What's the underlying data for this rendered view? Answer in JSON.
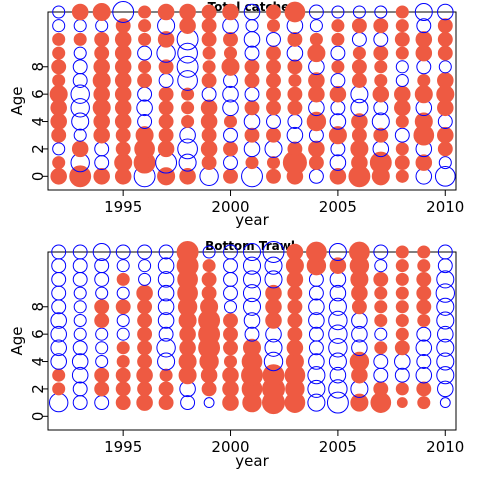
{
  "colors": {
    "positive": "#EE5A42",
    "negative": "#0000FF"
  },
  "chart_data": [
    {
      "type": "bubble",
      "title": "Total catches",
      "xlabel": "year",
      "ylabel": "Age",
      "xlim": [
        1991.5,
        2010.5
      ],
      "ylim": [
        -1,
        12
      ],
      "x_ticks": [
        1995,
        2000,
        2005,
        2010
      ],
      "y_ticks": [
        0,
        2,
        4,
        6,
        8
      ],
      "years": [
        1992,
        1993,
        1994,
        1995,
        1996,
        1997,
        1998,
        1999,
        2000,
        2001,
        2002,
        2003,
        2004,
        2005,
        2006,
        2007,
        2008,
        2009,
        2010
      ],
      "ages": [
        0,
        1,
        2,
        3,
        4,
        5,
        6,
        7,
        8,
        9,
        10,
        11,
        12
      ],
      "grid": false,
      "legend": "none",
      "residuals_by_age": [
        [
          0.5,
          0.9,
          0.5,
          0.5,
          -0.9,
          0.6,
          0.5,
          -0.7,
          0.4,
          -0.9,
          0.4,
          0.5,
          -0.4,
          0.5,
          0.9,
          0.6,
          0.3,
          -0.5,
          -0.8
        ],
        [
          0.3,
          -0.7,
          -0.4,
          0.6,
          0.9,
          -0.9,
          -0.6,
          0.4,
          -0.4,
          0.3,
          0.3,
          1.1,
          0.4,
          -0.5,
          0.5,
          0.9,
          0.4,
          0.5,
          -0.3
        ],
        [
          -0.3,
          0.5,
          -0.4,
          0.4,
          0.8,
          0.5,
          -0.8,
          0.5,
          0.4,
          -0.5,
          -0.6,
          0.4,
          0.5,
          -0.4,
          0.6,
          -0.5,
          0.3,
          -0.5,
          0.4
        ],
        [
          0.4,
          -0.3,
          0.5,
          0.4,
          0.6,
          0.4,
          -0.5,
          0.4,
          -0.4,
          0.4,
          0.4,
          -0.5,
          -0.4,
          0.6,
          0.4,
          0.4,
          -0.4,
          0.8,
          0.5
        ],
        [
          0.5,
          -0.6,
          0.5,
          0.5,
          -0.4,
          0.4,
          0.3,
          0.5,
          0.3,
          -0.5,
          -0.4,
          -0.4,
          0.7,
          -0.5,
          0.5,
          -0.6,
          0.3,
          0.6,
          -0.4
        ],
        [
          0.5,
          -0.7,
          0.6,
          0.5,
          -0.5,
          0.4,
          0.3,
          0.5,
          -0.5,
          0.4,
          0.4,
          0.4,
          -0.5,
          -0.4,
          -0.6,
          -0.4,
          0.5,
          -0.5,
          0.5
        ],
        [
          0.6,
          -0.7,
          0.5,
          0.5,
          -0.4,
          0.4,
          0.3,
          -0.4,
          -0.5,
          -0.4,
          0.4,
          0.4,
          0.5,
          0.5,
          -0.6,
          0.5,
          0.5,
          0.6,
          0.6
        ],
        [
          0.3,
          -0.4,
          0.6,
          0.5,
          0.4,
          -0.4,
          -0.8,
          0.4,
          -0.4,
          0.4,
          0.4,
          0.3,
          0.5,
          -0.4,
          0.4,
          0.3,
          -0.3,
          0.3,
          0.5
        ],
        [
          0.4,
          -0.4,
          0.5,
          0.5,
          0.3,
          0.4,
          -0.9,
          0.3,
          0.6,
          0.4,
          0.4,
          0.4,
          -0.5,
          0.3,
          0.4,
          0.3,
          -0.3,
          -0.4,
          -0.3
        ],
        [
          0.3,
          -0.3,
          0.4,
          0.5,
          -0.4,
          -0.7,
          -0.8,
          0.3,
          0.3,
          -0.4,
          0.4,
          -0.5,
          0.6,
          -0.4,
          0.3,
          0.4,
          0.3,
          0.5,
          0.4
        ],
        [
          0.3,
          0.3,
          0.4,
          0.5,
          0.3,
          0.5,
          -0.9,
          0.4,
          0.4,
          -0.5,
          -0.4,
          0.4,
          0.3,
          0.3,
          -0.4,
          -0.4,
          0.4,
          0.5,
          0.4
        ],
        [
          -0.3,
          -0.3,
          -0.3,
          0.4,
          0.3,
          -0.6,
          0.5,
          0.4,
          -0.5,
          -0.3,
          0.3,
          -0.5,
          -0.3,
          0.3,
          0.4,
          0.4,
          0.3,
          -0.4,
          0.4
        ],
        [
          -0.3,
          0.5,
          0.6,
          -0.9,
          0.3,
          0.5,
          0.5,
          0.4,
          0.5,
          -0.5,
          0.4,
          0.8,
          -0.4,
          -0.3,
          -0.3,
          -0.3,
          0.3,
          -0.6,
          -0.5
        ]
      ]
    },
    {
      "type": "bubble",
      "title": "Bottom Trawl",
      "xlabel": "year",
      "ylabel": "Age",
      "xlim": [
        1991.5,
        2010.5
      ],
      "ylim": [
        -1,
        12
      ],
      "x_ticks": [
        1995,
        2000,
        2005,
        2010
      ],
      "y_ticks": [
        0,
        2,
        4,
        6,
        8
      ],
      "years": [
        1992,
        1993,
        1994,
        1995,
        1996,
        1997,
        1998,
        1999,
        2000,
        2001,
        2002,
        2003,
        2004,
        2005,
        2006,
        2007,
        2008,
        2009,
        2010
      ],
      "ages": [
        1,
        2,
        3,
        4,
        5,
        6,
        7,
        8,
        9,
        10,
        11,
        12
      ],
      "grid": false,
      "legend": "none",
      "residuals_by_age": [
        [
          -0.7,
          -0.4,
          -0.4,
          0.4,
          0.5,
          0.4,
          -0.4,
          -0.2,
          0.5,
          0.7,
          1.0,
          0.8,
          -0.6,
          -0.9,
          0.6,
          0.8,
          0.2,
          0.3,
          -0.2
        ],
        [
          0.3,
          -0.4,
          0.4,
          0.4,
          0.4,
          0.4,
          -0.5,
          0.4,
          0.5,
          0.8,
          1.0,
          0.7,
          -0.6,
          -0.7,
          -0.6,
          0.4,
          0.3,
          0.4,
          -0.5
        ],
        [
          0.3,
          -0.5,
          0.4,
          0.4,
          0.5,
          0.3,
          0.6,
          0.5,
          0.5,
          0.9,
          0.9,
          0.8,
          -0.6,
          -0.5,
          0.5,
          -0.4,
          -0.4,
          -0.5,
          -0.6
        ],
        [
          -0.5,
          -0.5,
          -0.3,
          0.3,
          0.4,
          -0.6,
          0.6,
          0.7,
          0.3,
          0.8,
          -0.7,
          0.6,
          -0.5,
          -0.6,
          0.7,
          -0.4,
          -0.5,
          -0.4,
          -0.6
        ],
        [
          -0.5,
          -0.4,
          -0.3,
          0.3,
          0.4,
          -0.7,
          0.5,
          0.9,
          0.4,
          0.6,
          -0.6,
          0.5,
          -0.4,
          -0.7,
          -0.5,
          0.3,
          0.4,
          -0.5,
          -0.6
        ],
        [
          -0.5,
          -0.3,
          -0.3,
          -0.3,
          0.4,
          -0.4,
          0.5,
          0.9,
          0.4,
          -0.4,
          -0.5,
          0.4,
          -0.4,
          -0.7,
          -0.5,
          -0.3,
          0.3,
          -0.4,
          -0.5
        ],
        [
          -0.5,
          -0.3,
          0.4,
          -0.3,
          0.4,
          -0.5,
          0.6,
          0.9,
          0.4,
          -0.5,
          0.5,
          0.4,
          -0.5,
          -0.7,
          -0.5,
          0.3,
          0.3,
          0.3,
          -0.6
        ],
        [
          -0.4,
          -0.3,
          0.4,
          0.4,
          0.4,
          -0.5,
          0.7,
          0.6,
          -0.3,
          -0.6,
          0.5,
          0.4,
          -0.5,
          -0.6,
          0.4,
          0.3,
          0.3,
          0.4,
          -0.6
        ],
        [
          -0.4,
          -0.3,
          -0.3,
          -0.3,
          0.5,
          -0.5,
          0.8,
          0.4,
          -0.4,
          -0.6,
          0.5,
          0.4,
          -0.4,
          -0.5,
          0.5,
          0.3,
          0.3,
          0.4,
          -0.7
        ],
        [
          -0.4,
          -0.4,
          -0.4,
          0.3,
          -0.3,
          -0.5,
          0.8,
          0.4,
          -0.4,
          -0.6,
          -0.6,
          0.5,
          -0.4,
          -0.5,
          0.6,
          0.4,
          0.3,
          0.4,
          -0.6
        ],
        [
          -0.4,
          -0.4,
          -0.4,
          -0.3,
          -0.3,
          -0.5,
          0.9,
          0.3,
          -0.4,
          -0.6,
          -0.6,
          0.6,
          0.7,
          0.5,
          0.7,
          -0.3,
          0.3,
          0.3,
          -0.4
        ],
        [
          -0.4,
          -0.4,
          -0.6,
          -0.4,
          -0.4,
          -0.4,
          0.9,
          -0.3,
          -0.4,
          -0.6,
          -0.9,
          0.5,
          0.8,
          -0.6,
          0.8,
          -0.4,
          0.3,
          0.3,
          -0.4
        ]
      ]
    }
  ]
}
